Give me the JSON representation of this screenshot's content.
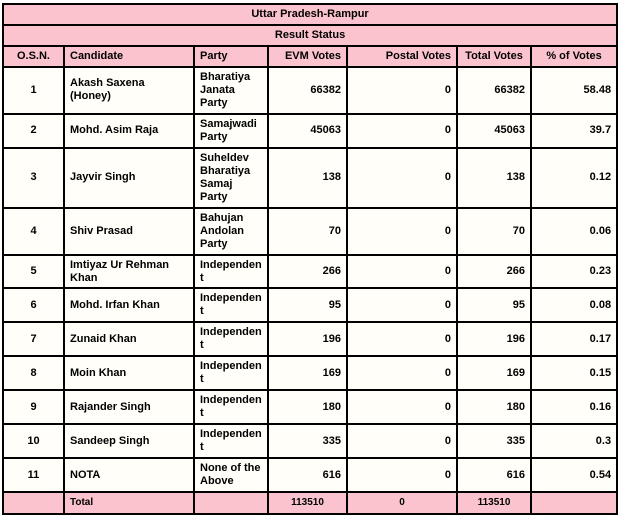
{
  "title": "Uttar Pradesh-Rampur",
  "subtitle": "Result Status",
  "columns": {
    "osn": "O.S.N.",
    "candidate": "Candidate",
    "party": "Party",
    "evm": "EVM Votes",
    "postal": "Postal Votes",
    "total": "Total Votes",
    "pct": "% of Votes"
  },
  "rows": [
    {
      "osn": "1",
      "candidate": "Akash Saxena (Honey)",
      "party": "Bharatiya Janata Party",
      "evm": "66382",
      "postal": "0",
      "total": "66382",
      "pct": "58.48"
    },
    {
      "osn": "2",
      "candidate": "Mohd. Asim Raja",
      "party": "Samajwadi Party",
      "evm": "45063",
      "postal": "0",
      "total": "45063",
      "pct": "39.7"
    },
    {
      "osn": "3",
      "candidate": "Jayvir Singh",
      "party": "Suheldev Bharatiya Samaj Party",
      "evm": "138",
      "postal": "0",
      "total": "138",
      "pct": "0.12"
    },
    {
      "osn": "4",
      "candidate": "Shiv Prasad",
      "party": "Bahujan Andolan Party",
      "evm": "70",
      "postal": "0",
      "total": "70",
      "pct": "0.06"
    },
    {
      "osn": "5",
      "candidate": "Imtiyaz Ur Rehman Khan",
      "party": "Independent",
      "evm": "266",
      "postal": "0",
      "total": "266",
      "pct": "0.23"
    },
    {
      "osn": "6",
      "candidate": "Mohd. Irfan Khan",
      "party": "Independent",
      "evm": "95",
      "postal": "0",
      "total": "95",
      "pct": "0.08"
    },
    {
      "osn": "7",
      "candidate": "Zunaid Khan",
      "party": "Independent",
      "evm": "196",
      "postal": "0",
      "total": "196",
      "pct": "0.17"
    },
    {
      "osn": "8",
      "candidate": "Moin Khan",
      "party": "Independent",
      "evm": "169",
      "postal": "0",
      "total": "169",
      "pct": "0.15"
    },
    {
      "osn": "9",
      "candidate": "Rajander Singh",
      "party": "Independent",
      "evm": "180",
      "postal": "0",
      "total": "180",
      "pct": "0.16"
    },
    {
      "osn": "10",
      "candidate": "Sandeep Singh",
      "party": "Independent",
      "evm": "335",
      "postal": "0",
      "total": "335",
      "pct": "0.3"
    },
    {
      "osn": "11",
      "candidate": "NOTA",
      "party": "None of the Above",
      "evm": "616",
      "postal": "0",
      "total": "616",
      "pct": "0.54"
    }
  ],
  "total_row": {
    "label": "Total",
    "evm": "113510",
    "postal": "0",
    "total": "113510"
  },
  "colors": {
    "header_pink": "#FBC3CD",
    "row_background": "#FFFEF8",
    "border": "#000000",
    "text": "#000000"
  }
}
